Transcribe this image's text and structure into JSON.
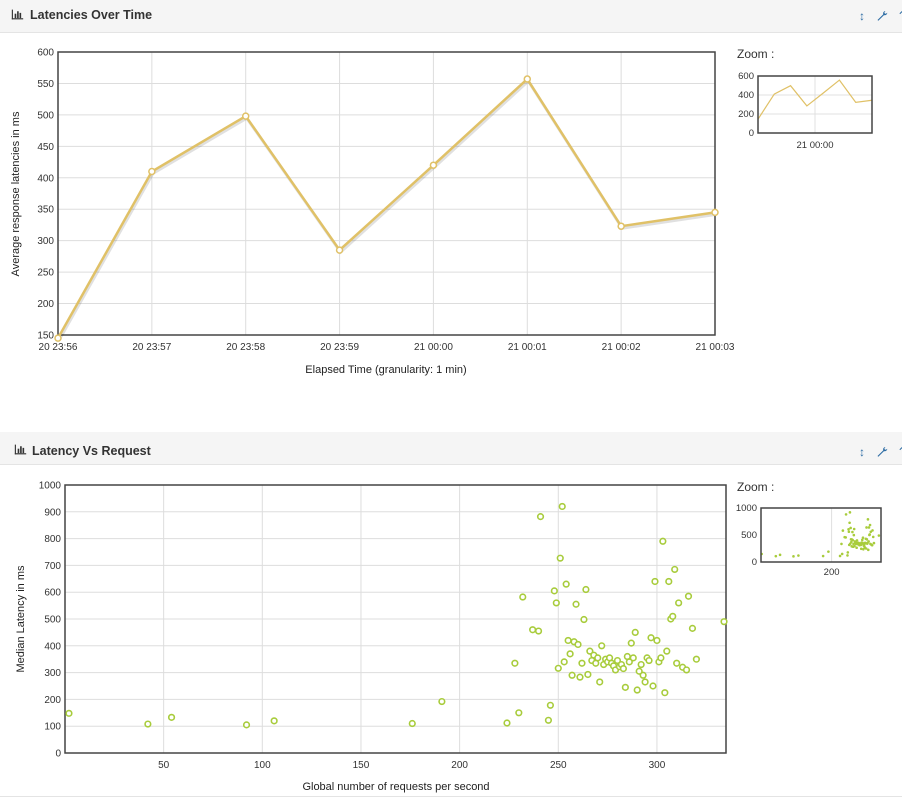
{
  "colors": {
    "line_series": "#e0c167",
    "scatter_series": "#a8cc3c",
    "tool_blue": "#2e6da4"
  },
  "icons": [
    "bar-chart-icon",
    "resize-vertical-icon",
    "wrench-icon"
  ],
  "panels": [
    {
      "title": "Latencies Over Time",
      "zoom_label": "Zoom :"
    },
    {
      "title": "Latency Vs Request",
      "zoom_label": "Zoom :"
    }
  ],
  "chart_data": [
    {
      "type": "line",
      "xlabel": "Elapsed Time (granularity: 1 min)",
      "ylabel": "Average response latencies in ms",
      "ylim": [
        150,
        600
      ],
      "yticks": [
        150,
        200,
        250,
        300,
        350,
        400,
        450,
        500,
        550,
        600
      ],
      "categories": [
        "20 23:56",
        "20 23:57",
        "20 23:58",
        "20 23:59",
        "21 00:00",
        "21 00:01",
        "21 00:02",
        "21 00:03"
      ],
      "values": [
        145,
        410,
        498,
        285,
        420,
        557,
        323,
        345
      ],
      "grid": true,
      "zoom": {
        "yticks": [
          0,
          200,
          400,
          600
        ],
        "xtick": "21 00:00"
      }
    },
    {
      "type": "scatter",
      "xlabel": "Global number of requests per second",
      "ylabel": "Median Latency in ms",
      "xlim": [
        0,
        335
      ],
      "ylim": [
        0,
        1000
      ],
      "xticks": [
        50,
        100,
        150,
        200,
        250,
        300
      ],
      "yticks": [
        0,
        100,
        200,
        300,
        400,
        500,
        600,
        700,
        800,
        900,
        1000
      ],
      "grid": true,
      "points": [
        [
          2,
          148
        ],
        [
          42,
          108
        ],
        [
          54,
          133
        ],
        [
          92,
          105
        ],
        [
          106,
          120
        ],
        [
          176,
          110
        ],
        [
          191,
          192
        ],
        [
          224,
          112
        ],
        [
          228,
          335
        ],
        [
          230,
          150
        ],
        [
          232,
          582
        ],
        [
          237,
          460
        ],
        [
          240,
          455
        ],
        [
          241,
          882
        ],
        [
          245,
          122
        ],
        [
          246,
          178
        ],
        [
          248,
          605
        ],
        [
          249,
          560
        ],
        [
          250,
          316
        ],
        [
          251,
          727
        ],
        [
          252,
          920
        ],
        [
          253,
          340
        ],
        [
          254,
          630
        ],
        [
          255,
          420
        ],
        [
          256,
          370
        ],
        [
          257,
          290
        ],
        [
          258,
          415
        ],
        [
          259,
          555
        ],
        [
          260,
          405
        ],
        [
          261,
          283
        ],
        [
          262,
          335
        ],
        [
          263,
          498
        ],
        [
          264,
          610
        ],
        [
          265,
          293
        ],
        [
          266,
          380
        ],
        [
          267,
          345
        ],
        [
          268,
          365
        ],
        [
          269,
          335
        ],
        [
          270,
          355
        ],
        [
          271,
          265
        ],
        [
          272,
          400
        ],
        [
          273,
          330
        ],
        [
          274,
          350
        ],
        [
          275,
          340
        ],
        [
          276,
          355
        ],
        [
          277,
          335
        ],
        [
          278,
          325
        ],
        [
          279,
          310
        ],
        [
          280,
          345
        ],
        [
          281,
          322
        ],
        [
          282,
          330
        ],
        [
          283,
          315
        ],
        [
          284,
          245
        ],
        [
          285,
          360
        ],
        [
          286,
          340
        ],
        [
          287,
          410
        ],
        [
          288,
          355
        ],
        [
          289,
          450
        ],
        [
          290,
          235
        ],
        [
          291,
          305
        ],
        [
          292,
          330
        ],
        [
          293,
          290
        ],
        [
          294,
          265
        ],
        [
          295,
          355
        ],
        [
          296,
          345
        ],
        [
          297,
          430
        ],
        [
          298,
          250
        ],
        [
          299,
          640
        ],
        [
          300,
          420
        ],
        [
          301,
          340
        ],
        [
          302,
          355
        ],
        [
          303,
          790
        ],
        [
          304,
          225
        ],
        [
          305,
          380
        ],
        [
          306,
          640
        ],
        [
          307,
          500
        ],
        [
          308,
          510
        ],
        [
          309,
          685
        ],
        [
          310,
          335
        ],
        [
          311,
          560
        ],
        [
          313,
          320
        ],
        [
          315,
          310
        ],
        [
          316,
          585
        ],
        [
          318,
          465
        ],
        [
          320,
          350
        ],
        [
          334,
          490
        ]
      ],
      "zoom": {
        "yticks": [
          0,
          500,
          1000
        ],
        "xtick": "200"
      }
    }
  ]
}
